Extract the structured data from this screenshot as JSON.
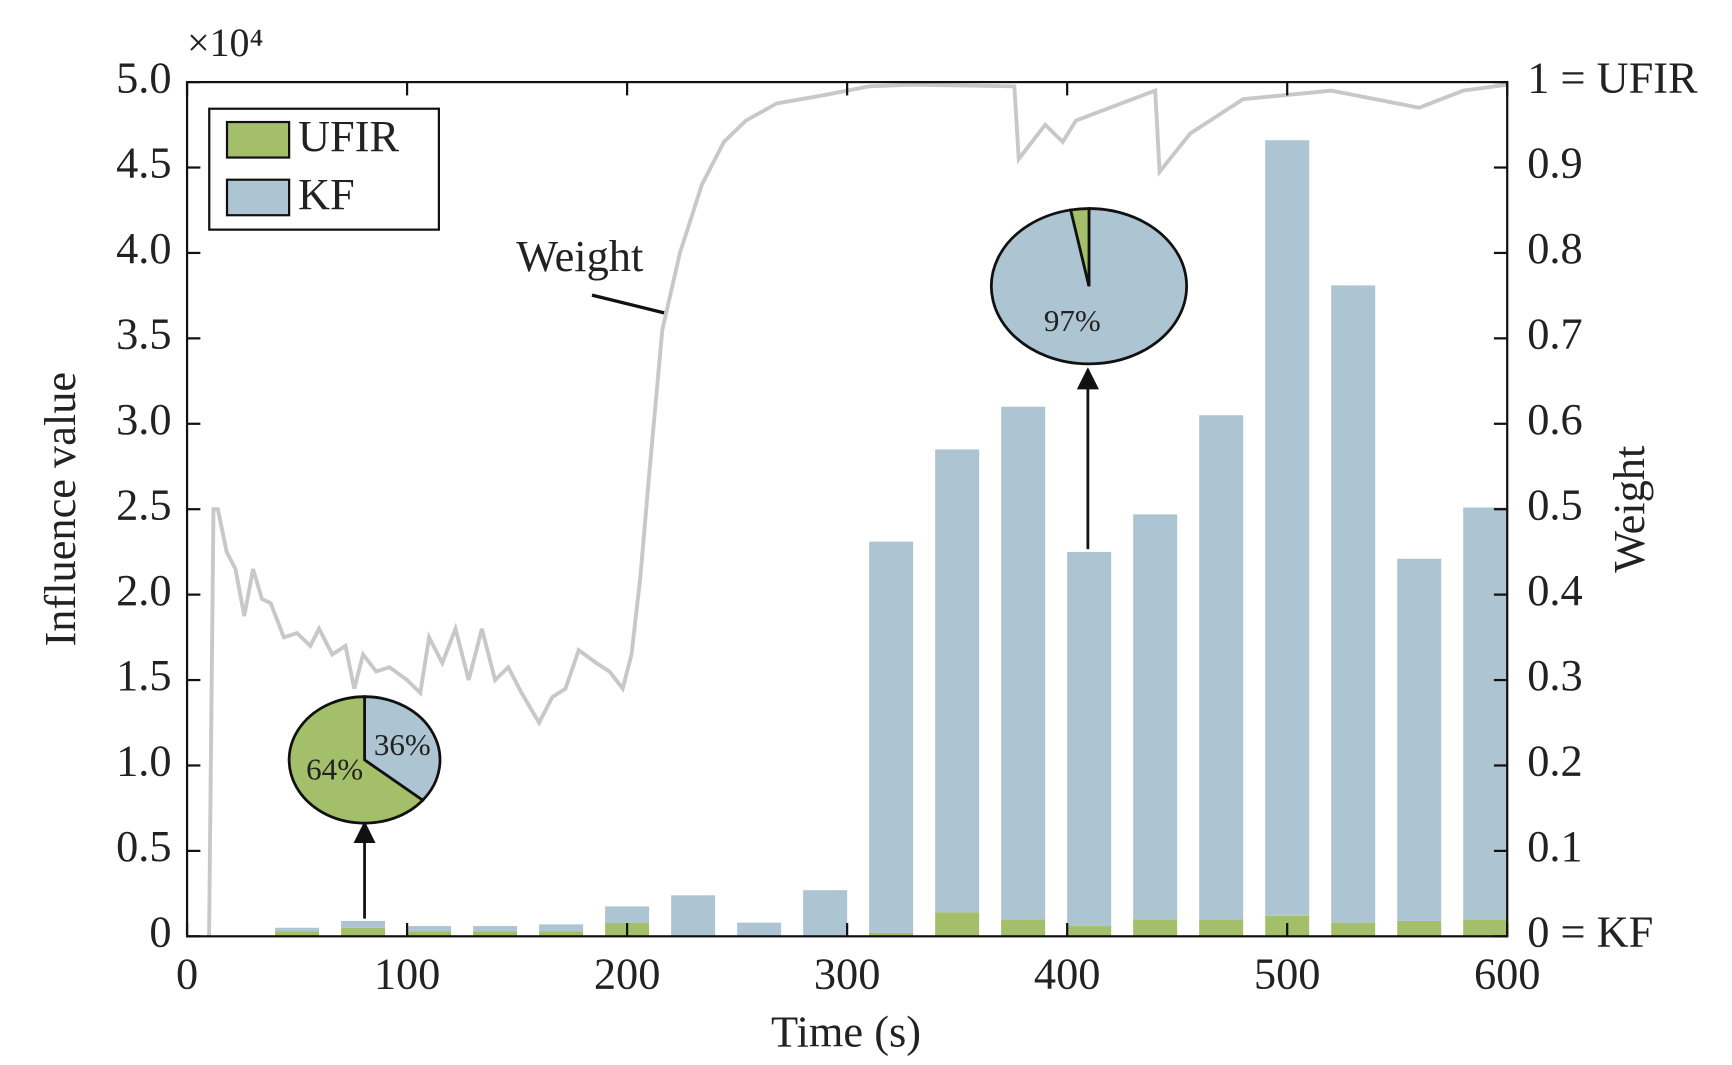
{
  "chart_data": [
    {
      "type": "bar",
      "stacked": true,
      "xlabel": "Time (s)",
      "ylabel": "Influence value",
      "y2label": "Weight",
      "y_multiplier": "×10⁴",
      "x": [
        50,
        80,
        110,
        140,
        170,
        200,
        230,
        260,
        290,
        320,
        350,
        380,
        410,
        440,
        470,
        500,
        530,
        560,
        590
      ],
      "bar_width": 20,
      "series": [
        {
          "name": "UFIR",
          "color": "#a4bf6a",
          "values": [
            0.03,
            0.05,
            0.03,
            0.03,
            0.03,
            0.08,
            0,
            0,
            0,
            0.02,
            0.14,
            0.1,
            0.06,
            0.1,
            0.1,
            0.12,
            0.08,
            0.09,
            0.1
          ]
        },
        {
          "name": "KF",
          "color": "#adc5d2",
          "values": [
            0.02,
            0.04,
            0.03,
            0.03,
            0.04,
            0.095,
            0.24,
            0.08,
            0.27,
            2.29,
            2.71,
            3.0,
            2.19,
            2.37,
            2.95,
            4.54,
            3.73,
            2.12,
            2.41
          ]
        },
        {
          "name": "Weight",
          "type": "line",
          "axis": "y2",
          "color": "#c8c8c8",
          "x": [
            10,
            12,
            14,
            18,
            22,
            26,
            30,
            34,
            38,
            44,
            50,
            56,
            60,
            66,
            72,
            76,
            80,
            86,
            92,
            100,
            106,
            110,
            116,
            122,
            128,
            134,
            140,
            146,
            152,
            160,
            166,
            172,
            178,
            186,
            192,
            198,
            202,
            206,
            210,
            216,
            224,
            234,
            244,
            254,
            268,
            290,
            310,
            330,
            376,
            378,
            390,
            398,
            404,
            440,
            442,
            456,
            480,
            500,
            520,
            560,
            580,
            600
          ],
          "values": [
            0,
            0.5,
            0.5,
            0.45,
            0.43,
            0.375,
            0.43,
            0.395,
            0.39,
            0.35,
            0.355,
            0.34,
            0.36,
            0.33,
            0.34,
            0.29,
            0.33,
            0.31,
            0.315,
            0.3,
            0.285,
            0.35,
            0.32,
            0.36,
            0.3,
            0.36,
            0.3,
            0.315,
            0.285,
            0.25,
            0.28,
            0.29,
            0.335,
            0.32,
            0.31,
            0.29,
            0.33,
            0.42,
            0.54,
            0.71,
            0.8,
            0.88,
            0.93,
            0.955,
            0.975,
            0.985,
            0.995,
            0.997,
            0.995,
            0.91,
            0.95,
            0.93,
            0.955,
            0.99,
            0.895,
            0.94,
            0.98,
            0.985,
            0.99,
            0.97,
            0.99,
            0.997
          ]
        }
      ],
      "xlim": [
        0,
        600
      ],
      "xticks": [
        0,
        100,
        200,
        300,
        400,
        500,
        600
      ],
      "ylim": [
        0,
        5
      ],
      "yticks": [
        0,
        0.5,
        {
          "value": 1,
          "label": "1.0"
        },
        1.5,
        {
          "value": 2,
          "label": "2.0"
        },
        2.5,
        {
          "value": 3,
          "label": "3.0"
        },
        3.5,
        {
          "value": 4,
          "label": "4.0"
        },
        4.5,
        {
          "value": 5,
          "label": "5.0"
        }
      ],
      "y2lim": [
        0,
        1
      ],
      "y2ticks": [
        {
          "value": 0,
          "label": "0 = KF"
        },
        0.1,
        0.2,
        0.3,
        0.4,
        0.5,
        0.6,
        0.7,
        0.8,
        0.9,
        {
          "value": 1,
          "label": "1 = UFIR"
        }
      ],
      "legend": "upper left"
    },
    {
      "type": "pie",
      "categories": [
        "KF",
        "UFIR"
      ],
      "colors": [
        "#adc5d2",
        "#a4bf6a"
      ],
      "values": [
        36,
        64
      ],
      "value_labels": [
        "36%",
        "64%"
      ]
    },
    {
      "type": "pie",
      "categories": [
        "KF",
        "UFIR"
      ],
      "colors": [
        "#adc5d2",
        "#a4bf6a"
      ],
      "values": [
        97,
        3
      ],
      "value_labels": [
        "97%",
        null
      ]
    }
  ]
}
